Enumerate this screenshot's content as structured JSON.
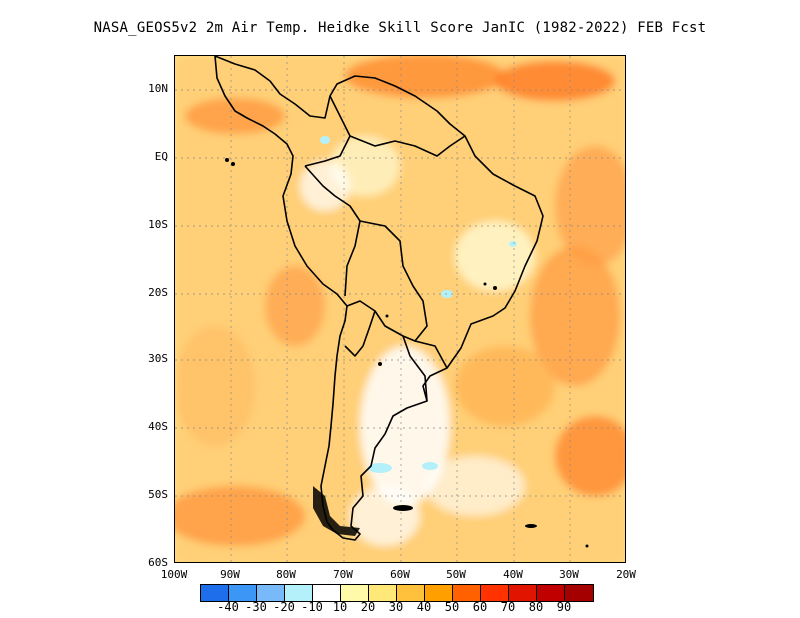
{
  "title": "NASA_GEOS5v2  2m Air Temp. Heidke Skill Score JanIC (1982-2022) FEB Fcst",
  "lat_labels": [
    "10N",
    "EQ",
    "10S",
    "20S",
    "30S",
    "40S",
    "50S",
    "60S"
  ],
  "lon_labels": [
    "100W",
    "90W",
    "80W",
    "70W",
    "60W",
    "50W",
    "40W",
    "30W",
    "20W"
  ],
  "legend": {
    "colors": [
      "#1e6eeb",
      "#3c96f5",
      "#78b9fa",
      "#b4f0fa",
      "#ffffff",
      "#fffaaa",
      "#ffe878",
      "#ffc03c",
      "#ffa000",
      "#ff6000",
      "#ff3200",
      "#e11400",
      "#c00000",
      "#a50000"
    ],
    "labels": [
      "-40",
      "-30",
      "-20",
      "-10",
      "10",
      "20",
      "30",
      "40",
      "50",
      "60",
      "70",
      "80",
      "90"
    ]
  }
}
